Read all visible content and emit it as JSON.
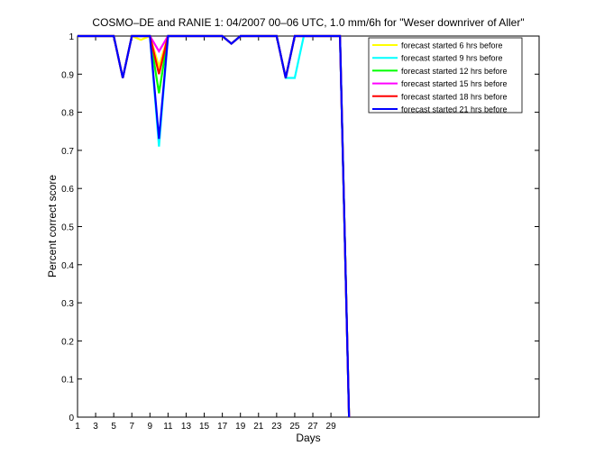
{
  "chart_data": {
    "type": "line",
    "title": "COSMO–DE and RANIE 1: 04/2007 00–06 UTC, 1.0 mm/6h for \"Weser downriver of Aller\"",
    "xlabel": "Days",
    "ylabel": "Percent correct score",
    "xlim": [
      1,
      52
    ],
    "ylim": [
      0,
      1
    ],
    "xticks": [
      1,
      3,
      5,
      7,
      9,
      11,
      13,
      15,
      17,
      19,
      21,
      23,
      25,
      27,
      29
    ],
    "xtick_labels": [
      "1",
      "3",
      "5",
      "7",
      "9",
      "11",
      "13",
      "15",
      "17",
      "19",
      "21",
      "23",
      "25",
      "27",
      "29"
    ],
    "yticks": [
      0,
      0.1,
      0.2,
      0.3,
      0.4,
      0.5,
      0.6,
      0.7,
      0.8,
      0.9,
      1
    ],
    "ytick_labels": [
      "0",
      "0.1",
      "0.2",
      "0.3",
      "0.4",
      "0.5",
      "0.6",
      "0.7",
      "0.8",
      "0.9",
      "1"
    ],
    "grid": false,
    "legend_position": "top-right",
    "series": [
      {
        "name": "forecast started 6 hrs before",
        "color": "#ffff00",
        "x": [
          1,
          2,
          3,
          4,
          5,
          6,
          7,
          8,
          9,
          10,
          11,
          12,
          13,
          14,
          15,
          16,
          17,
          18,
          19,
          20,
          21,
          22,
          23,
          24,
          25,
          26,
          27,
          28,
          29,
          30,
          31
        ],
        "y": [
          1,
          1,
          1,
          1,
          1,
          0.89,
          1,
          0.99,
          1,
          0.92,
          1,
          1,
          1,
          1,
          1,
          1,
          1,
          0.98,
          1,
          1,
          1,
          1,
          1,
          0.89,
          1,
          1,
          1,
          1,
          1,
          1,
          0
        ]
      },
      {
        "name": "forecast started 9 hrs before",
        "color": "#00ffff",
        "x": [
          1,
          2,
          3,
          4,
          5,
          6,
          7,
          8,
          9,
          10,
          11,
          12,
          13,
          14,
          15,
          16,
          17,
          18,
          19,
          20,
          21,
          22,
          23,
          24,
          25,
          26,
          27,
          28,
          29,
          30,
          31
        ],
        "y": [
          1,
          1,
          1,
          1,
          1,
          0.89,
          1,
          1,
          1,
          0.71,
          1,
          1,
          1,
          1,
          1,
          1,
          1,
          0.98,
          1,
          1,
          1,
          1,
          1,
          0.89,
          0.89,
          1,
          1,
          1,
          1,
          1,
          0
        ]
      },
      {
        "name": "forecast started 12 hrs before",
        "color": "#00ff00",
        "x": [
          1,
          2,
          3,
          4,
          5,
          6,
          7,
          8,
          9,
          10,
          11,
          12,
          13,
          14,
          15,
          16,
          17,
          18,
          19,
          20,
          21,
          22,
          23,
          24,
          25,
          26,
          27,
          28,
          29,
          30,
          31
        ],
        "y": [
          1,
          1,
          1,
          1,
          1,
          0.89,
          1,
          1,
          1,
          0.85,
          1,
          1,
          1,
          1,
          1,
          1,
          1,
          0.98,
          1,
          1,
          1,
          1,
          1,
          0.89,
          1,
          1,
          1,
          1,
          1,
          1,
          0
        ]
      },
      {
        "name": "forecast started 15 hrs before",
        "color": "#ff00ff",
        "x": [
          1,
          2,
          3,
          4,
          5,
          6,
          7,
          8,
          9,
          10,
          11,
          12,
          13,
          14,
          15,
          16,
          17,
          18,
          19,
          20,
          21,
          22,
          23,
          24,
          25,
          26,
          27,
          28,
          29,
          30,
          31
        ],
        "y": [
          1,
          1,
          1,
          1,
          1,
          0.89,
          1,
          1,
          1,
          0.96,
          1,
          1,
          1,
          1,
          1,
          1,
          1,
          0.98,
          1,
          1,
          1,
          1,
          1,
          0.89,
          1,
          1,
          1,
          1,
          1,
          1,
          0
        ]
      },
      {
        "name": "forecast started 18 hrs before",
        "color": "#ff0000",
        "x": [
          1,
          2,
          3,
          4,
          5,
          6,
          7,
          8,
          9,
          10,
          11,
          12,
          13,
          14,
          15,
          16,
          17,
          18,
          19,
          20,
          21,
          22,
          23,
          24,
          25,
          26,
          27,
          28,
          29,
          30,
          31
        ],
        "y": [
          1,
          1,
          1,
          1,
          1,
          0.89,
          1,
          1,
          1,
          0.9,
          1,
          1,
          1,
          1,
          1,
          1,
          1,
          0.98,
          1,
          1,
          1,
          1,
          1,
          0.89,
          1,
          1,
          1,
          1,
          1,
          1,
          0
        ]
      },
      {
        "name": "forecast started 21 hrs before",
        "color": "#0000ff",
        "x": [
          1,
          2,
          3,
          4,
          5,
          6,
          7,
          8,
          9,
          10,
          11,
          12,
          13,
          14,
          15,
          16,
          17,
          18,
          19,
          20,
          21,
          22,
          23,
          24,
          25,
          26,
          27,
          28,
          29,
          30,
          31
        ],
        "y": [
          1,
          1,
          1,
          1,
          1,
          0.89,
          1,
          1,
          1,
          0.73,
          1,
          1,
          1,
          1,
          1,
          1,
          1,
          0.98,
          1,
          1,
          1,
          1,
          1,
          0.89,
          1,
          1,
          1,
          1,
          1,
          1,
          0
        ]
      }
    ]
  }
}
